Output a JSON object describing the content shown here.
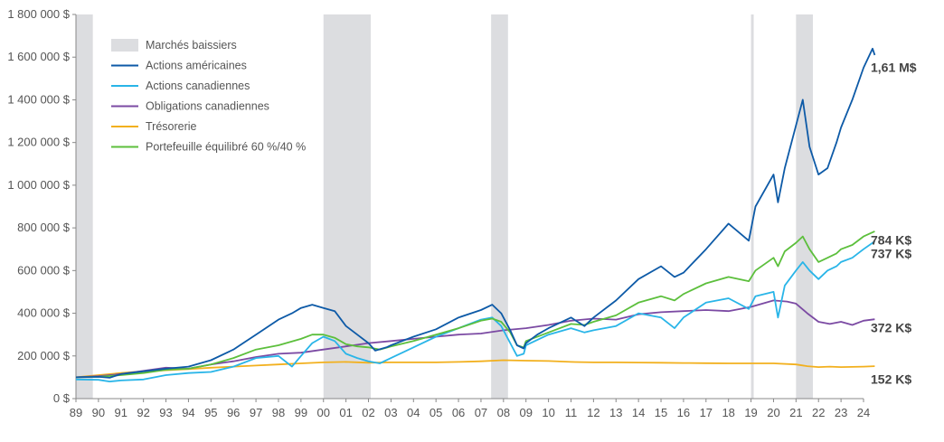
{
  "chart_data": {
    "type": "line",
    "x_tick_labels": [
      "89",
      "90",
      "91",
      "92",
      "93",
      "94",
      "95",
      "96",
      "97",
      "98",
      "99",
      "00",
      "01",
      "02",
      "03",
      "04",
      "05",
      "06",
      "07",
      "08",
      "09",
      "10",
      "11",
      "12",
      "13",
      "14",
      "15",
      "16",
      "17",
      "18",
      "19",
      "20",
      "21",
      "22",
      "23",
      "24"
    ],
    "x_range": [
      1989,
      2024
    ],
    "y_tick_labels": [
      "0 $",
      "200 000 $",
      "400 000 $",
      "600 000 $",
      "800 000 $",
      "1 000 000 $",
      "1 200 000 $",
      "1 400 000 $",
      "1 600 000 $",
      "1 800 000 $"
    ],
    "ylim": [
      0,
      1800000
    ],
    "grid": false,
    "legend_position": "top-left",
    "bear_markets": [
      {
        "start": 1989.0,
        "end": 1989.75
      },
      {
        "start": 2000.0,
        "end": 2002.1
      },
      {
        "start": 2007.45,
        "end": 2008.2
      },
      {
        "start": 2019.0,
        "end": 2019.12
      },
      {
        "start": 2021.0,
        "end": 2021.75
      }
    ],
    "bear_market_color": "#dcdde0",
    "legend": {
      "bear_label": "Marchés baissiers"
    },
    "series": [
      {
        "name": "Actions américaines",
        "color": "#0d5aa7",
        "end_label": "1,61 M$",
        "points": [
          [
            1989,
            100000
          ],
          [
            1990,
            102000
          ],
          [
            1990.5,
            98000
          ],
          [
            1991,
            115000
          ],
          [
            1992,
            128000
          ],
          [
            1993,
            140000
          ],
          [
            1994,
            150000
          ],
          [
            1995,
            180000
          ],
          [
            1996,
            230000
          ],
          [
            1997,
            300000
          ],
          [
            1998,
            370000
          ],
          [
            1998.6,
            400000
          ],
          [
            1999,
            425000
          ],
          [
            1999.5,
            440000
          ],
          [
            2000,
            425000
          ],
          [
            2000.5,
            410000
          ],
          [
            2001,
            340000
          ],
          [
            2001.5,
            300000
          ],
          [
            2002,
            260000
          ],
          [
            2002.3,
            225000
          ],
          [
            2002.8,
            240000
          ],
          [
            2003,
            250000
          ],
          [
            2004,
            290000
          ],
          [
            2005,
            325000
          ],
          [
            2006,
            380000
          ],
          [
            2007,
            415000
          ],
          [
            2007.5,
            440000
          ],
          [
            2007.9,
            400000
          ],
          [
            2008.3,
            320000
          ],
          [
            2008.6,
            250000
          ],
          [
            2008.9,
            235000
          ],
          [
            2009,
            260000
          ],
          [
            2009.5,
            300000
          ],
          [
            2010,
            330000
          ],
          [
            2011,
            380000
          ],
          [
            2011.6,
            340000
          ],
          [
            2012,
            380000
          ],
          [
            2013,
            460000
          ],
          [
            2014,
            560000
          ],
          [
            2015,
            620000
          ],
          [
            2015.6,
            570000
          ],
          [
            2016,
            590000
          ],
          [
            2017,
            700000
          ],
          [
            2018,
            820000
          ],
          [
            2018.9,
            740000
          ],
          [
            2019.2,
            900000
          ],
          [
            2020,
            1050000
          ],
          [
            2020.2,
            920000
          ],
          [
            2020.5,
            1080000
          ],
          [
            2021,
            1280000
          ],
          [
            2021.3,
            1400000
          ],
          [
            2021.6,
            1180000
          ],
          [
            2022,
            1050000
          ],
          [
            2022.4,
            1080000
          ],
          [
            2022.8,
            1200000
          ],
          [
            2023,
            1270000
          ],
          [
            2023.5,
            1400000
          ],
          [
            2024,
            1550000
          ],
          [
            2024.4,
            1640000
          ],
          [
            2024.5,
            1610000
          ]
        ]
      },
      {
        "name": "Actions canadiennes",
        "color": "#29b5e8",
        "end_label": "737 K$",
        "points": [
          [
            1989,
            90000
          ],
          [
            1990,
            88000
          ],
          [
            1990.5,
            80000
          ],
          [
            1991,
            85000
          ],
          [
            1992,
            90000
          ],
          [
            1993,
            110000
          ],
          [
            1994,
            120000
          ],
          [
            1995,
            125000
          ],
          [
            1996,
            150000
          ],
          [
            1997,
            190000
          ],
          [
            1998,
            200000
          ],
          [
            1998.6,
            150000
          ],
          [
            1999,
            200000
          ],
          [
            1999.5,
            260000
          ],
          [
            2000,
            290000
          ],
          [
            2000.5,
            270000
          ],
          [
            2001,
            210000
          ],
          [
            2001.5,
            190000
          ],
          [
            2002,
            175000
          ],
          [
            2002.5,
            165000
          ],
          [
            2003,
            190000
          ],
          [
            2004,
            240000
          ],
          [
            2005,
            290000
          ],
          [
            2006,
            330000
          ],
          [
            2007,
            370000
          ],
          [
            2007.5,
            380000
          ],
          [
            2007.9,
            340000
          ],
          [
            2008.3,
            260000
          ],
          [
            2008.6,
            200000
          ],
          [
            2008.9,
            210000
          ],
          [
            2009,
            250000
          ],
          [
            2010,
            300000
          ],
          [
            2011,
            330000
          ],
          [
            2011.6,
            310000
          ],
          [
            2012,
            320000
          ],
          [
            2013,
            340000
          ],
          [
            2014,
            400000
          ],
          [
            2015,
            380000
          ],
          [
            2015.6,
            330000
          ],
          [
            2016,
            380000
          ],
          [
            2017,
            450000
          ],
          [
            2018,
            470000
          ],
          [
            2018.9,
            420000
          ],
          [
            2019.2,
            480000
          ],
          [
            2020,
            500000
          ],
          [
            2020.2,
            380000
          ],
          [
            2020.5,
            530000
          ],
          [
            2021,
            600000
          ],
          [
            2021.3,
            640000
          ],
          [
            2021.6,
            600000
          ],
          [
            2022,
            560000
          ],
          [
            2022.4,
            600000
          ],
          [
            2022.8,
            620000
          ],
          [
            2023,
            640000
          ],
          [
            2023.5,
            660000
          ],
          [
            2024,
            700000
          ],
          [
            2024.5,
            737000
          ]
        ]
      },
      {
        "name": "Obligations canadiennes",
        "color": "#7b4aa3",
        "end_label": "372 K$",
        "points": [
          [
            1989,
            100000
          ],
          [
            1990,
            105000
          ],
          [
            1991,
            115000
          ],
          [
            1992,
            130000
          ],
          [
            1993,
            145000
          ],
          [
            1994,
            140000
          ],
          [
            1995,
            160000
          ],
          [
            1996,
            175000
          ],
          [
            1997,
            195000
          ],
          [
            1998,
            210000
          ],
          [
            1999,
            215000
          ],
          [
            2000,
            230000
          ],
          [
            2001,
            245000
          ],
          [
            2002,
            260000
          ],
          [
            2003,
            270000
          ],
          [
            2004,
            280000
          ],
          [
            2005,
            290000
          ],
          [
            2006,
            300000
          ],
          [
            2007,
            305000
          ],
          [
            2008,
            320000
          ],
          [
            2009,
            330000
          ],
          [
            2010,
            345000
          ],
          [
            2011,
            365000
          ],
          [
            2012,
            375000
          ],
          [
            2013,
            370000
          ],
          [
            2014,
            395000
          ],
          [
            2015,
            405000
          ],
          [
            2016,
            410000
          ],
          [
            2017,
            415000
          ],
          [
            2018,
            410000
          ],
          [
            2019,
            430000
          ],
          [
            2020,
            460000
          ],
          [
            2020.6,
            455000
          ],
          [
            2021,
            445000
          ],
          [
            2021.5,
            400000
          ],
          [
            2022,
            360000
          ],
          [
            2022.5,
            350000
          ],
          [
            2023,
            360000
          ],
          [
            2023.5,
            345000
          ],
          [
            2024,
            365000
          ],
          [
            2024.5,
            372000
          ]
        ]
      },
      {
        "name": "Trésorerie",
        "color": "#f2b01e",
        "end_label": "152 K$",
        "points": [
          [
            1989,
            100000
          ],
          [
            1990,
            110000
          ],
          [
            1991,
            120000
          ],
          [
            1992,
            128000
          ],
          [
            1993,
            133000
          ],
          [
            1994,
            138000
          ],
          [
            1995,
            145000
          ],
          [
            1996,
            150000
          ],
          [
            1997,
            155000
          ],
          [
            1998,
            160000
          ],
          [
            1999,
            165000
          ],
          [
            2000,
            170000
          ],
          [
            2001,
            172000
          ],
          [
            2002,
            168000
          ],
          [
            2003,
            170000
          ],
          [
            2004,
            170000
          ],
          [
            2005,
            170000
          ],
          [
            2006,
            172000
          ],
          [
            2007,
            175000
          ],
          [
            2008,
            180000
          ],
          [
            2009,
            178000
          ],
          [
            2010,
            176000
          ],
          [
            2011,
            172000
          ],
          [
            2012,
            170000
          ],
          [
            2013,
            170000
          ],
          [
            2014,
            169000
          ],
          [
            2015,
            168000
          ],
          [
            2016,
            167000
          ],
          [
            2017,
            166000
          ],
          [
            2018,
            165000
          ],
          [
            2019,
            165000
          ],
          [
            2020,
            165000
          ],
          [
            2021,
            160000
          ],
          [
            2021.5,
            152000
          ],
          [
            2022,
            148000
          ],
          [
            2022.5,
            150000
          ],
          [
            2023,
            148000
          ],
          [
            2024,
            150000
          ],
          [
            2024.5,
            152000
          ]
        ]
      },
      {
        "name": "Portefeuille équilibré 60 %/40 %",
        "color": "#5cbf3c",
        "end_label": "784 K$",
        "points": [
          [
            1989,
            100000
          ],
          [
            1990,
            102000
          ],
          [
            1991,
            110000
          ],
          [
            1992,
            120000
          ],
          [
            1993,
            135000
          ],
          [
            1994,
            140000
          ],
          [
            1995,
            160000
          ],
          [
            1996,
            190000
          ],
          [
            1997,
            230000
          ],
          [
            1998,
            250000
          ],
          [
            1999,
            280000
          ],
          [
            1999.5,
            300000
          ],
          [
            2000,
            300000
          ],
          [
            2000.5,
            285000
          ],
          [
            2001,
            255000
          ],
          [
            2001.5,
            245000
          ],
          [
            2002,
            240000
          ],
          [
            2002.5,
            230000
          ],
          [
            2003,
            245000
          ],
          [
            2004,
            270000
          ],
          [
            2005,
            300000
          ],
          [
            2006,
            330000
          ],
          [
            2007,
            365000
          ],
          [
            2007.5,
            375000
          ],
          [
            2007.9,
            360000
          ],
          [
            2008.3,
            310000
          ],
          [
            2008.6,
            250000
          ],
          [
            2008.9,
            240000
          ],
          [
            2009,
            270000
          ],
          [
            2010,
            310000
          ],
          [
            2011,
            350000
          ],
          [
            2011.6,
            345000
          ],
          [
            2012,
            360000
          ],
          [
            2013,
            390000
          ],
          [
            2014,
            450000
          ],
          [
            2015,
            480000
          ],
          [
            2015.6,
            460000
          ],
          [
            2016,
            490000
          ],
          [
            2017,
            540000
          ],
          [
            2018,
            570000
          ],
          [
            2018.9,
            550000
          ],
          [
            2019.2,
            600000
          ],
          [
            2020,
            660000
          ],
          [
            2020.2,
            620000
          ],
          [
            2020.5,
            690000
          ],
          [
            2021,
            730000
          ],
          [
            2021.3,
            760000
          ],
          [
            2021.6,
            700000
          ],
          [
            2022,
            640000
          ],
          [
            2022.4,
            660000
          ],
          [
            2022.8,
            680000
          ],
          [
            2023,
            700000
          ],
          [
            2023.5,
            720000
          ],
          [
            2024,
            760000
          ],
          [
            2024.5,
            784000
          ]
        ]
      }
    ]
  }
}
